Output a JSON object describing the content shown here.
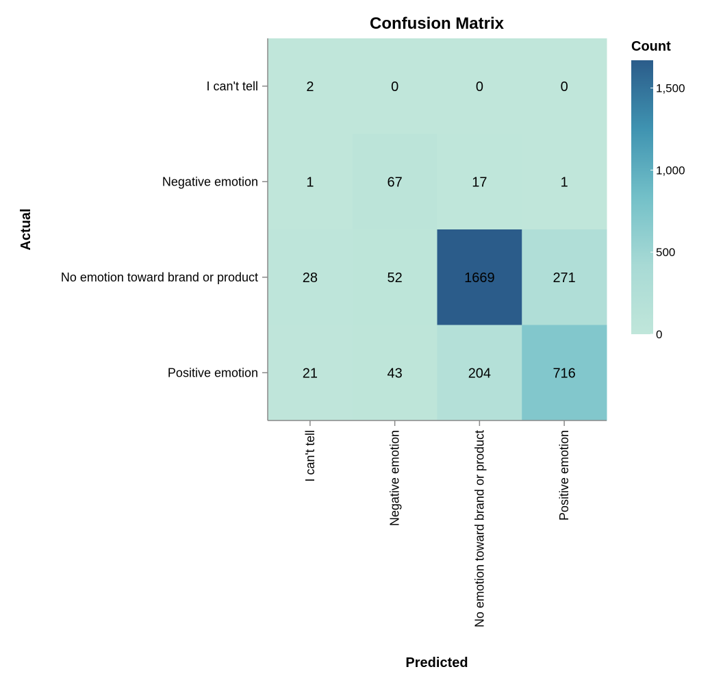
{
  "chart_data": {
    "type": "heatmap",
    "title": "Confusion Matrix",
    "xlabel": "Predicted",
    "ylabel": "Actual",
    "x_categories": [
      "I can't tell",
      "Negative emotion",
      "No emotion toward brand or product",
      "Positive emotion"
    ],
    "y_categories": [
      "I can't tell",
      "Negative emotion",
      "No emotion toward brand or product",
      "Positive emotion"
    ],
    "values": [
      [
        2,
        0,
        0,
        0
      ],
      [
        1,
        67,
        17,
        1
      ],
      [
        28,
        52,
        1669,
        271
      ],
      [
        21,
        43,
        204,
        716
      ]
    ],
    "legend": {
      "title": "Count",
      "ticks": [
        0,
        500,
        1000,
        1500
      ],
      "tick_labels": [
        "0",
        "500",
        "1,000",
        "1,500"
      ],
      "domain": [
        0,
        1669
      ],
      "position": "right"
    },
    "colors": {
      "scale": [
        "#c0e6da",
        "#a8dad5",
        "#73c0c8",
        "#3f93b1",
        "#2b5c8a"
      ]
    }
  }
}
